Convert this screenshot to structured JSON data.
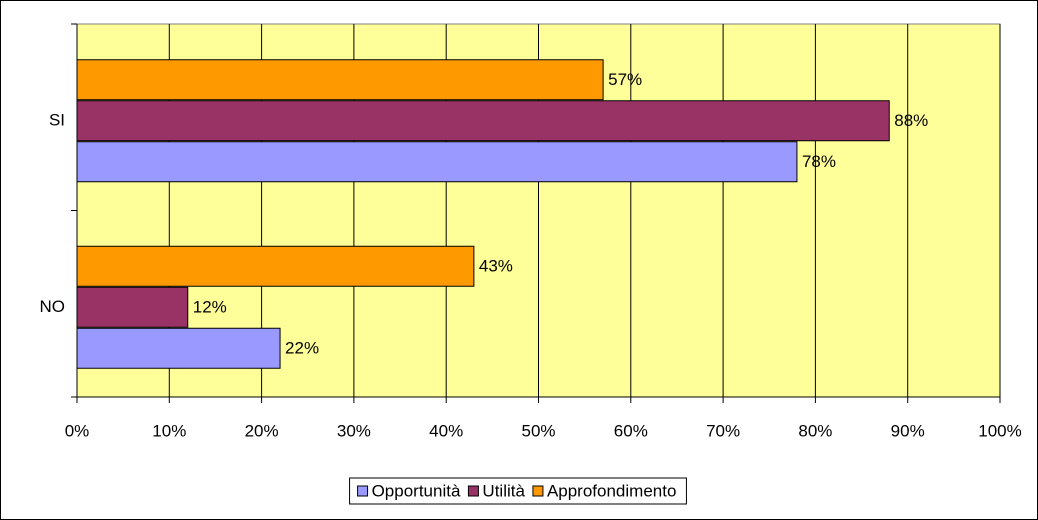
{
  "chart_data": {
    "type": "bar",
    "orientation": "horizontal",
    "categories": [
      "SI",
      "NO"
    ],
    "series": [
      {
        "name": "Opportunità",
        "color": "#9999ff",
        "values": [
          78,
          22
        ],
        "value_labels": [
          "78%",
          "22%"
        ]
      },
      {
        "name": "Utilità",
        "color": "#993366",
        "values": [
          88,
          12
        ],
        "value_labels": [
          "88%",
          "12%"
        ]
      },
      {
        "name": "Approfondimento",
        "color": "#ff9900",
        "values": [
          57,
          43
        ],
        "value_labels": [
          "57%",
          "43%"
        ]
      }
    ],
    "xlim": [
      0,
      100
    ],
    "xticks": [
      {
        "value": 0,
        "label": "0%"
      },
      {
        "value": 10,
        "label": "10%"
      },
      {
        "value": 20,
        "label": "20%"
      },
      {
        "value": 30,
        "label": "30%"
      },
      {
        "value": 40,
        "label": "40%"
      },
      {
        "value": 50,
        "label": "50%"
      },
      {
        "value": 60,
        "label": "60%"
      },
      {
        "value": 70,
        "label": "70%"
      },
      {
        "value": 80,
        "label": "80%"
      },
      {
        "value": 90,
        "label": "90%"
      },
      {
        "value": 100,
        "label": "100%"
      }
    ],
    "grid": true,
    "legend": "bottom",
    "background": "#ffff99"
  }
}
